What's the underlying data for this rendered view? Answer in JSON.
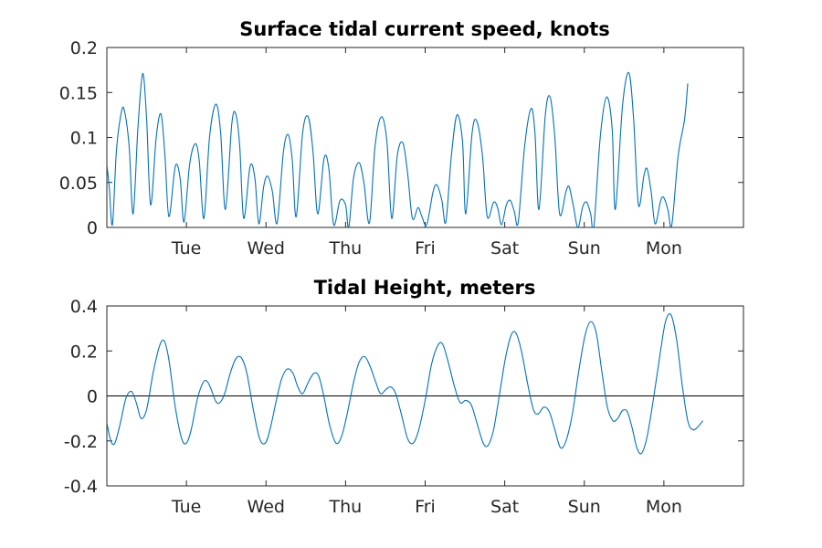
{
  "chart_data": [
    {
      "type": "line",
      "title": "Surface tidal current speed, knots",
      "xlabel": "",
      "ylabel": "",
      "ylim": [
        0,
        0.2
      ],
      "xlim": [
        0,
        8
      ],
      "yticks": [
        0,
        0.05,
        0.1,
        0.15,
        0.2
      ],
      "yticklabels": [
        "0",
        "0.05",
        "0.1",
        "0.15",
        "0.2"
      ],
      "xticks": [
        1,
        2,
        3,
        4,
        5,
        6,
        7
      ],
      "xticklabels": [
        "Tue",
        "Wed",
        "Thu",
        "Fri",
        "Sat",
        "Sun",
        "Mon"
      ],
      "grid": false,
      "color": "#0072bd",
      "series": [
        {
          "values": [
            [
              0.0,
              0.07
            ],
            [
              0.03,
              0.045
            ],
            [
              0.07,
              0.003
            ],
            [
              0.12,
              0.085
            ],
            [
              0.18,
              0.127
            ],
            [
              0.22,
              0.13
            ],
            [
              0.28,
              0.09
            ],
            [
              0.33,
              0.015
            ],
            [
              0.39,
              0.11
            ],
            [
              0.45,
              0.171
            ],
            [
              0.5,
              0.12
            ],
            [
              0.55,
              0.025
            ],
            [
              0.62,
              0.1
            ],
            [
              0.68,
              0.126
            ],
            [
              0.73,
              0.08
            ],
            [
              0.78,
              0.012
            ],
            [
              0.86,
              0.068
            ],
            [
              0.92,
              0.055
            ],
            [
              0.97,
              0.006
            ],
            [
              1.04,
              0.07
            ],
            [
              1.11,
              0.093
            ],
            [
              1.16,
              0.075
            ],
            [
              1.22,
              0.01
            ],
            [
              1.29,
              0.1
            ],
            [
              1.37,
              0.137
            ],
            [
              1.43,
              0.105
            ],
            [
              1.49,
              0.02
            ],
            [
              1.57,
              0.115
            ],
            [
              1.62,
              0.126
            ],
            [
              1.67,
              0.09
            ],
            [
              1.72,
              0.01
            ],
            [
              1.8,
              0.068
            ],
            [
              1.86,
              0.055
            ],
            [
              1.91,
              0.004
            ],
            [
              1.97,
              0.045
            ],
            [
              2.02,
              0.057
            ],
            [
              2.08,
              0.04
            ],
            [
              2.14,
              0.005
            ],
            [
              2.22,
              0.085
            ],
            [
              2.28,
              0.103
            ],
            [
              2.33,
              0.075
            ],
            [
              2.38,
              0.012
            ],
            [
              2.46,
              0.105
            ],
            [
              2.53,
              0.123
            ],
            [
              2.59,
              0.085
            ],
            [
              2.65,
              0.015
            ],
            [
              2.73,
              0.077
            ],
            [
              2.79,
              0.065
            ],
            [
              2.85,
              0.003
            ],
            [
              2.93,
              0.03
            ],
            [
              3.0,
              0.025
            ],
            [
              3.04,
              0.0
            ],
            [
              3.1,
              0.055
            ],
            [
              3.17,
              0.072
            ],
            [
              3.23,
              0.05
            ],
            [
              3.3,
              0.005
            ],
            [
              3.37,
              0.09
            ],
            [
              3.45,
              0.123
            ],
            [
              3.52,
              0.095
            ],
            [
              3.58,
              0.01
            ],
            [
              3.65,
              0.08
            ],
            [
              3.72,
              0.094
            ],
            [
              3.78,
              0.06
            ],
            [
              3.84,
              0.01
            ],
            [
              3.91,
              0.022
            ],
            [
              3.96,
              0.012
            ],
            [
              4.02,
              0.003
            ],
            [
              4.1,
              0.04
            ],
            [
              4.15,
              0.047
            ],
            [
              4.21,
              0.03
            ],
            [
              4.26,
              0.006
            ],
            [
              4.33,
              0.08
            ],
            [
              4.4,
              0.125
            ],
            [
              4.47,
              0.095
            ],
            [
              4.51,
              0.015
            ],
            [
              4.59,
              0.105
            ],
            [
              4.65,
              0.118
            ],
            [
              4.72,
              0.08
            ],
            [
              4.78,
              0.012
            ],
            [
              4.86,
              0.028
            ],
            [
              4.91,
              0.022
            ],
            [
              4.96,
              0.003
            ],
            [
              5.02,
              0.025
            ],
            [
              5.07,
              0.03
            ],
            [
              5.12,
              0.018
            ],
            [
              5.17,
              0.006
            ],
            [
              5.25,
              0.09
            ],
            [
              5.33,
              0.132
            ],
            [
              5.38,
              0.105
            ],
            [
              5.43,
              0.02
            ],
            [
              5.51,
              0.125
            ],
            [
              5.57,
              0.145
            ],
            [
              5.63,
              0.1
            ],
            [
              5.69,
              0.015
            ],
            [
              5.77,
              0.04
            ],
            [
              5.81,
              0.045
            ],
            [
              5.86,
              0.025
            ],
            [
              5.92,
              0.0
            ],
            [
              5.98,
              0.023
            ],
            [
              6.03,
              0.028
            ],
            [
              6.08,
              0.015
            ],
            [
              6.12,
              0.0
            ],
            [
              6.2,
              0.1
            ],
            [
              6.28,
              0.145
            ],
            [
              6.35,
              0.11
            ],
            [
              6.39,
              0.02
            ],
            [
              6.48,
              0.135
            ],
            [
              6.56,
              0.172
            ],
            [
              6.62,
              0.12
            ],
            [
              6.68,
              0.025
            ],
            [
              6.75,
              0.058
            ],
            [
              6.79,
              0.065
            ],
            [
              6.84,
              0.04
            ],
            [
              6.89,
              0.004
            ],
            [
              6.96,
              0.03
            ],
            [
              7.0,
              0.033
            ],
            [
              7.05,
              0.02
            ],
            [
              7.1,
              0.003
            ],
            [
              7.18,
              0.08
            ],
            [
              7.26,
              0.12
            ],
            [
              7.3,
              0.16
            ]
          ]
        }
      ]
    },
    {
      "type": "line",
      "title": "Tidal Height, meters",
      "xlabel": "",
      "ylabel": "",
      "ylim": [
        -0.4,
        0.4
      ],
      "xlim": [
        0,
        8
      ],
      "yticks": [
        -0.4,
        -0.2,
        0,
        0.2,
        0.4
      ],
      "yticklabels": [
        "-0.4",
        "-0.2",
        "0",
        "0.2",
        "0.4"
      ],
      "xticks": [
        1,
        2,
        3,
        4,
        5,
        6,
        7
      ],
      "xticklabels": [
        "Tue",
        "Wed",
        "Thu",
        "Fri",
        "Sat",
        "Sun",
        "Mon"
      ],
      "grid": false,
      "zero_line": true,
      "color": "#0072bd",
      "series": [
        {
          "values": [
            [
              0.0,
              -0.12
            ],
            [
              0.05,
              -0.2
            ],
            [
              0.1,
              -0.21
            ],
            [
              0.17,
              -0.12
            ],
            [
              0.24,
              -0.01
            ],
            [
              0.31,
              0.02
            ],
            [
              0.37,
              -0.03
            ],
            [
              0.43,
              -0.1
            ],
            [
              0.5,
              -0.06
            ],
            [
              0.58,
              0.1
            ],
            [
              0.66,
              0.22
            ],
            [
              0.72,
              0.245
            ],
            [
              0.78,
              0.16
            ],
            [
              0.86,
              -0.05
            ],
            [
              0.94,
              -0.19
            ],
            [
              1.0,
              -0.21
            ],
            [
              1.06,
              -0.15
            ],
            [
              1.14,
              -0.01
            ],
            [
              1.21,
              0.06
            ],
            [
              1.26,
              0.065
            ],
            [
              1.31,
              0.03
            ],
            [
              1.37,
              -0.025
            ],
            [
              1.42,
              -0.03
            ],
            [
              1.48,
              0.01
            ],
            [
              1.55,
              0.1
            ],
            [
              1.62,
              0.165
            ],
            [
              1.69,
              0.17
            ],
            [
              1.76,
              0.1
            ],
            [
              1.84,
              -0.06
            ],
            [
              1.92,
              -0.19
            ],
            [
              1.99,
              -0.21
            ],
            [
              2.05,
              -0.15
            ],
            [
              2.13,
              -0.02
            ],
            [
              2.2,
              0.08
            ],
            [
              2.27,
              0.12
            ],
            [
              2.34,
              0.1
            ],
            [
              2.4,
              0.04
            ],
            [
              2.46,
              0.01
            ],
            [
              2.53,
              0.06
            ],
            [
              2.6,
              0.1
            ],
            [
              2.66,
              0.09
            ],
            [
              2.72,
              0.01
            ],
            [
              2.8,
              -0.13
            ],
            [
              2.88,
              -0.21
            ],
            [
              2.95,
              -0.18
            ],
            [
              3.02,
              -0.08
            ],
            [
              3.1,
              0.06
            ],
            [
              3.17,
              0.15
            ],
            [
              3.24,
              0.175
            ],
            [
              3.31,
              0.13
            ],
            [
              3.38,
              0.06
            ],
            [
              3.44,
              0.01
            ],
            [
              3.51,
              0.03
            ],
            [
              3.57,
              0.04
            ],
            [
              3.63,
              0.01
            ],
            [
              3.7,
              -0.08
            ],
            [
              3.78,
              -0.19
            ],
            [
              3.85,
              -0.21
            ],
            [
              3.92,
              -0.15
            ],
            [
              4.0,
              -0.02
            ],
            [
              4.08,
              0.14
            ],
            [
              4.16,
              0.225
            ],
            [
              4.22,
              0.23
            ],
            [
              4.29,
              0.15
            ],
            [
              4.37,
              0.04
            ],
            [
              4.44,
              -0.03
            ],
            [
              4.51,
              -0.02
            ],
            [
              4.58,
              -0.04
            ],
            [
              4.65,
              -0.12
            ],
            [
              4.73,
              -0.21
            ],
            [
              4.79,
              -0.22
            ],
            [
              4.86,
              -0.15
            ],
            [
              4.94,
              0.02
            ],
            [
              5.01,
              0.17
            ],
            [
              5.08,
              0.27
            ],
            [
              5.14,
              0.28
            ],
            [
              5.21,
              0.2
            ],
            [
              5.29,
              0.05
            ],
            [
              5.36,
              -0.06
            ],
            [
              5.42,
              -0.08
            ],
            [
              5.49,
              -0.05
            ],
            [
              5.56,
              -0.07
            ],
            [
              5.63,
              -0.15
            ],
            [
              5.7,
              -0.23
            ],
            [
              5.77,
              -0.2
            ],
            [
              5.85,
              -0.08
            ],
            [
              5.93,
              0.11
            ],
            [
              6.01,
              0.27
            ],
            [
              6.08,
              0.33
            ],
            [
              6.15,
              0.28
            ],
            [
              6.22,
              0.11
            ],
            [
              6.29,
              -0.05
            ],
            [
              6.36,
              -0.11
            ],
            [
              6.42,
              -0.1
            ],
            [
              6.48,
              -0.065
            ],
            [
              6.54,
              -0.07
            ],
            [
              6.6,
              -0.14
            ],
            [
              6.66,
              -0.23
            ],
            [
              6.72,
              -0.255
            ],
            [
              6.79,
              -0.18
            ],
            [
              6.87,
              -0.01
            ],
            [
              6.95,
              0.18
            ],
            [
              7.02,
              0.33
            ],
            [
              7.09,
              0.36
            ],
            [
              7.16,
              0.25
            ],
            [
              7.23,
              0.05
            ],
            [
              7.3,
              -0.11
            ],
            [
              7.36,
              -0.15
            ],
            [
              7.42,
              -0.14
            ],
            [
              7.49,
              -0.11
            ]
          ]
        }
      ]
    }
  ]
}
